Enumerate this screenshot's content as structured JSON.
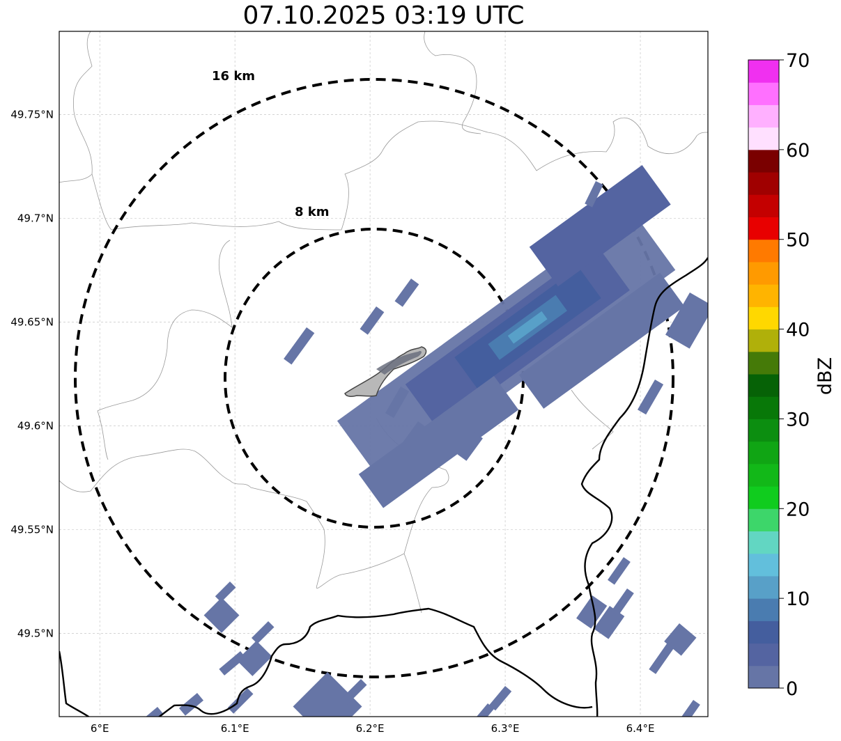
{
  "title": "07.10.2025 03:19 UTC",
  "map": {
    "lon_range": [
      5.97,
      6.45
    ],
    "lat_range": [
      49.46,
      49.79
    ],
    "grid": true,
    "lat_ticks": [
      {
        "value": 49.5,
        "label": "49.5°N"
      },
      {
        "value": 49.55,
        "label": "49.55°N"
      },
      {
        "value": 49.6,
        "label": "49.6°N"
      },
      {
        "value": 49.65,
        "label": "49.65°N"
      },
      {
        "value": 49.7,
        "label": "49.7°N"
      },
      {
        "value": 49.75,
        "label": "49.75°N"
      }
    ],
    "lon_ticks": [
      {
        "value": 6.0,
        "label": "6°E"
      },
      {
        "value": 6.1,
        "label": "6.1°E"
      },
      {
        "value": 6.2,
        "label": "6.2°E"
      },
      {
        "value": 6.3,
        "label": "6.3°E"
      },
      {
        "value": 6.4,
        "label": "6.4°E"
      }
    ],
    "range_rings": [
      {
        "label": "8 km",
        "radius_km": 8
      },
      {
        "label": "16 km",
        "radius_km": 16
      }
    ],
    "center": {
      "lon": 6.202,
      "lat": 49.622
    }
  },
  "colorbar": {
    "label": "dBZ",
    "ticks": [
      "0",
      "10",
      "20",
      "30",
      "40",
      "50",
      "60",
      "70"
    ],
    "colors": [
      "#6675a6",
      "#5464a1",
      "#445e9e",
      "#4a7cb0",
      "#58a0c8",
      "#62bfdc",
      "#62d6c2",
      "#3dd66a",
      "#10cc1e",
      "#12b818",
      "#10a514",
      "#0c8e10",
      "#087808",
      "#066206",
      "#457a08",
      "#b0b00a",
      "#ffd800",
      "#ffb400",
      "#ff9a00",
      "#ff7a00",
      "#e80000",
      "#c40000",
      "#a00000",
      "#7a0000",
      "#ffe0ff",
      "#ffb0ff",
      "#ff70ff",
      "#f030f0"
    ]
  }
}
